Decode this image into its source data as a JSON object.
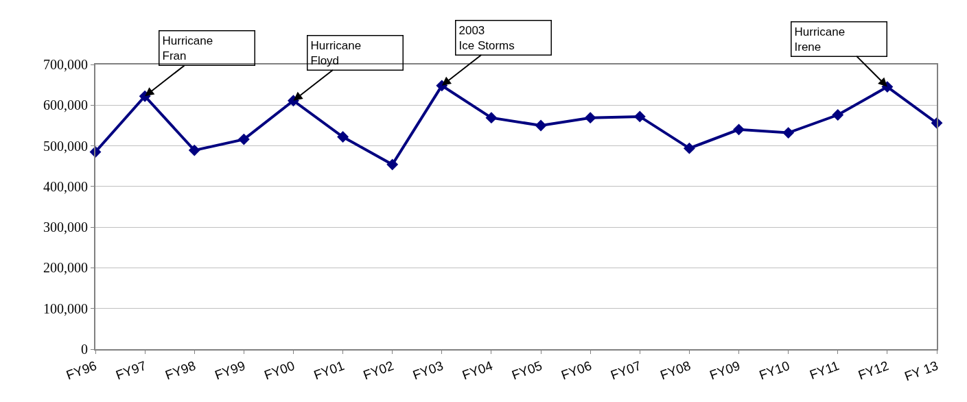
{
  "chart_data": {
    "type": "line",
    "categories": [
      "FY96",
      "FY97",
      "FY98",
      "FY99",
      "FY00",
      "FY01",
      "FY02",
      "FY03",
      "FY04",
      "FY05",
      "FY06",
      "FY07",
      "FY08",
      "FY09",
      "FY10",
      "FY11",
      "FY12",
      "FY 13"
    ],
    "series": [
      {
        "color": "#000080",
        "values": [
          485000,
          622000,
          489000,
          516000,
          611000,
          522000,
          454000,
          648000,
          569000,
          550000,
          569000,
          572000,
          494000,
          540000,
          532000,
          576000,
          645000,
          556000
        ]
      }
    ],
    "ylim": [
      0,
      700000
    ],
    "yticks": [
      {
        "value": 0,
        "label": "0"
      },
      {
        "value": 100000,
        "label": "100,000"
      },
      {
        "value": 200000,
        "label": "200,000"
      },
      {
        "value": 300000,
        "label": "300,000"
      },
      {
        "value": 400000,
        "label": "400,000"
      },
      {
        "value": 500000,
        "label": "500,000"
      },
      {
        "value": 600000,
        "label": "600,000"
      },
      {
        "value": 700000,
        "label": "700,000"
      }
    ],
    "annotations": [
      {
        "text": "Hurricane\nFran",
        "x": "FY97",
        "y": 622000
      },
      {
        "text": "Hurricane\nFloyd",
        "x": "FY00",
        "y": 611000
      },
      {
        "text": "2003\nIce Storms",
        "x": "FY03",
        "y": 648000
      },
      {
        "text": "Hurricane\nIrene",
        "x": "FY12",
        "y": 645000
      }
    ],
    "grid": "y",
    "marker": "diamond",
    "line_style": "solid"
  }
}
